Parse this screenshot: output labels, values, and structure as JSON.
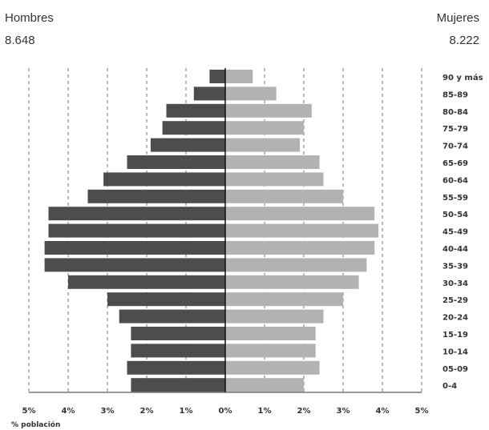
{
  "header": {
    "left_label": "Hombres",
    "left_total": "8.648",
    "right_label": "Mujeres",
    "right_total": "8.222"
  },
  "chart_data": {
    "type": "bar",
    "orientation": "horizontal-pyramid",
    "categories": [
      "0-4",
      "05-09",
      "10-14",
      "15-19",
      "20-24",
      "25-29",
      "30-34",
      "35-39",
      "40-44",
      "45-49",
      "50-54",
      "55-59",
      "60-64",
      "65-69",
      "70-74",
      "75-79",
      "80-84",
      "85-89",
      "90 y más"
    ],
    "category_labels": [
      "0-4",
      "05-09",
      "10-14",
      "15-19",
      "20-24",
      "25-29",
      "30-34",
      "35-39",
      "40-44",
      "45-49",
      "50-54",
      "55-59",
      "60-64",
      "65-69",
      "70-74",
      "75-79",
      "80-84",
      "85-89",
      "90 y más"
    ],
    "series": [
      {
        "name": "Hombres",
        "color": "#4d4d4f",
        "values": [
          2.4,
          2.5,
          2.4,
          2.4,
          2.7,
          3.0,
          4.0,
          4.6,
          4.6,
          4.5,
          4.5,
          3.5,
          3.1,
          2.5,
          1.9,
          1.6,
          1.5,
          0.8,
          0.4
        ]
      },
      {
        "name": "Mujeres",
        "color": "#b2b2b2",
        "values": [
          2.0,
          2.4,
          2.3,
          2.3,
          2.5,
          3.0,
          3.4,
          3.6,
          3.8,
          3.9,
          3.8,
          3.0,
          2.5,
          2.4,
          1.9,
          2.0,
          2.2,
          1.3,
          0.7
        ]
      }
    ],
    "xlim": [
      -5,
      5
    ],
    "xticks": [
      "5%",
      "4%",
      "3%",
      "2%",
      "1%",
      "0%",
      "1%",
      "2%",
      "3%",
      "4%",
      "5%"
    ],
    "xlabel": "% población",
    "grid": true
  }
}
